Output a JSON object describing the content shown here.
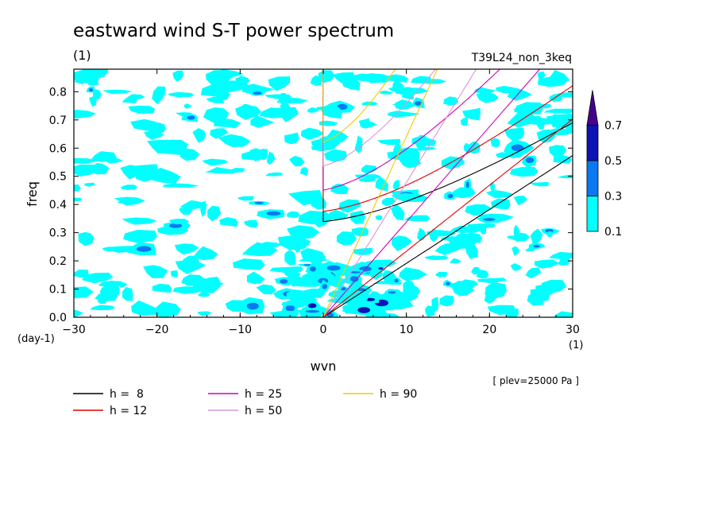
{
  "chart_data": {
    "type": "heatmap",
    "title": "eastward wind S-T power spectrum",
    "title_unit": "(1)",
    "run_label": "T39L24_non_3keq",
    "xlabel": "wvn",
    "ylabel": "freq",
    "x_unit": "(1)",
    "y_unit": "(day-1)",
    "xlim": [
      -30,
      30
    ],
    "ylim": [
      0,
      0.88
    ],
    "x_ticks": [
      -30,
      -20,
      -10,
      0,
      10,
      20,
      30
    ],
    "y_ticks": [
      0.0,
      0.1,
      0.2,
      0.3,
      0.4,
      0.5,
      0.6,
      0.7,
      0.8
    ],
    "level_note": "[ plev=25000 Pa ]",
    "colorbar": {
      "levels": [
        0.1,
        0.3,
        0.5,
        0.7
      ],
      "colors": [
        "#00ffff",
        "#0a78f0",
        "#0c14b4",
        "#46008c"
      ]
    },
    "series": [
      {
        "name": "h =  8",
        "color": "#000000"
      },
      {
        "name": "h = 12",
        "color": "#e00000"
      },
      {
        "name": "h = 25",
        "color": "#d000b8"
      },
      {
        "name": "h = 50",
        "color": "#dc96dc"
      },
      {
        "name": "h = 90",
        "color": "#f5c800"
      }
    ]
  }
}
